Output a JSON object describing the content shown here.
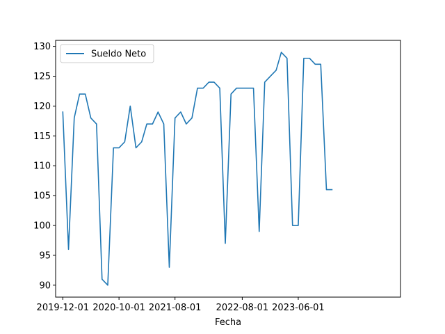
{
  "chart_data": {
    "type": "line",
    "xlabel": "Fecha",
    "ylabel": "",
    "ylim": [
      88,
      131
    ],
    "xlim": [
      "2019-10-23",
      "2024-12-07"
    ],
    "grid": false,
    "legend_placement": "top-left",
    "x_ticks": [
      "2019-12-01",
      "2020-10-01",
      "2021-08-01",
      "2022-08-01",
      "2023-06-01"
    ],
    "y_ticks": [
      90,
      95,
      100,
      105,
      110,
      115,
      120,
      125,
      130
    ],
    "series": [
      {
        "name": "Sueldo Neto",
        "color": "#1f77b4",
        "x": [
          "2019-12-01",
          "2020-01-01",
          "2020-02-01",
          "2020-03-01",
          "2020-04-01",
          "2020-05-01",
          "2020-06-01",
          "2020-07-01",
          "2020-08-01",
          "2020-09-01",
          "2020-10-01",
          "2020-11-01",
          "2020-12-01",
          "2021-01-01",
          "2021-02-01",
          "2021-03-01",
          "2021-04-01",
          "2021-05-01",
          "2021-06-01",
          "2021-07-01",
          "2021-08-01",
          "2021-09-01",
          "2021-10-01",
          "2021-11-01",
          "2021-12-01",
          "2022-01-01",
          "2022-02-01",
          "2022-03-01",
          "2022-04-01",
          "2022-05-01",
          "2022-06-01",
          "2022-07-01",
          "2022-08-01",
          "2022-09-01",
          "2022-10-01",
          "2022-11-01",
          "2022-12-01",
          "2023-01-01",
          "2023-02-01",
          "2023-03-01",
          "2023-04-01",
          "2023-05-01",
          "2023-06-01",
          "2023-07-01",
          "2023-08-01",
          "2023-09-01",
          "2023-10-01",
          "2023-11-01",
          "2023-12-01"
        ],
        "values": [
          119,
          96,
          118,
          122,
          122,
          118,
          117,
          91,
          90,
          113,
          113,
          114,
          120,
          113,
          114,
          117,
          117,
          119,
          117,
          93,
          118,
          119,
          117,
          118,
          123,
          123,
          124,
          124,
          123,
          97,
          122,
          123,
          123,
          123,
          123,
          99,
          124,
          125,
          126,
          129,
          128,
          100,
          100,
          128,
          128,
          127,
          127,
          106,
          106
        ]
      }
    ]
  }
}
